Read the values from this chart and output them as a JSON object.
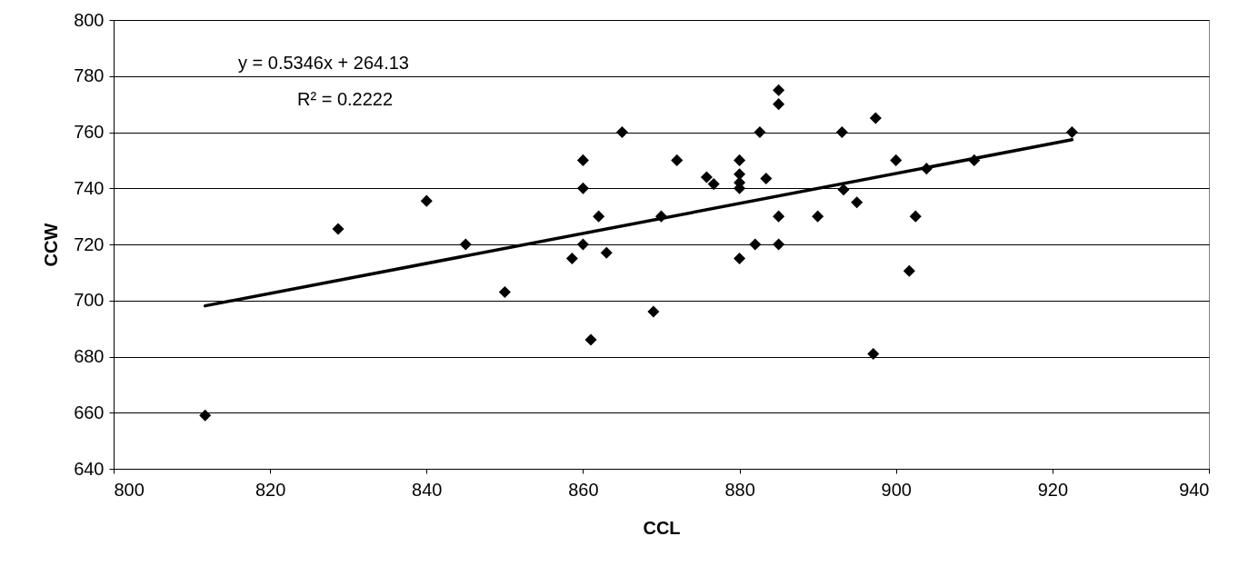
{
  "chart_data": {
    "type": "scatter",
    "xlabel": "CCL",
    "ylabel": "CCW",
    "xlim": [
      800,
      940
    ],
    "xticks": [
      800,
      820,
      840,
      860,
      880,
      900,
      920,
      940
    ],
    "ylim": [
      640,
      800
    ],
    "yticks": [
      640,
      660,
      680,
      700,
      720,
      740,
      760,
      780,
      800
    ],
    "grid": "y",
    "annotations": [
      "y = 0.5346x + 264.13",
      "R² = 0.2222"
    ],
    "series": [
      {
        "marker": "diamond",
        "color": "#000000",
        "x": [
          811.7,
          828.7,
          840,
          845,
          850,
          858.6,
          860,
          860,
          860,
          861,
          862,
          863,
          865,
          869,
          870,
          872,
          875.8,
          876.7,
          880,
          880,
          880,
          880,
          880,
          882,
          882.6,
          883.4,
          885,
          885,
          885,
          885,
          890,
          893.1,
          893.3,
          895,
          897.1,
          897.4,
          900,
          901.7,
          902.5,
          903.9,
          910,
          922.5
        ],
        "values": [
          659,
          725.5,
          735.5,
          720,
          703,
          715,
          750,
          740,
          720,
          686,
          730,
          717,
          760,
          696,
          730,
          750,
          744,
          741.5,
          750,
          745,
          742,
          740,
          715,
          720,
          760,
          743.5,
          775,
          770,
          730,
          720,
          730,
          760,
          739.5,
          735,
          681,
          765,
          750,
          710.5,
          730,
          747,
          750,
          760
        ]
      },
      {
        "type": "line",
        "color": "#000000",
        "x": [
          811.7,
          922.5
        ],
        "values": [
          698.1,
          757.3
        ]
      }
    ]
  }
}
